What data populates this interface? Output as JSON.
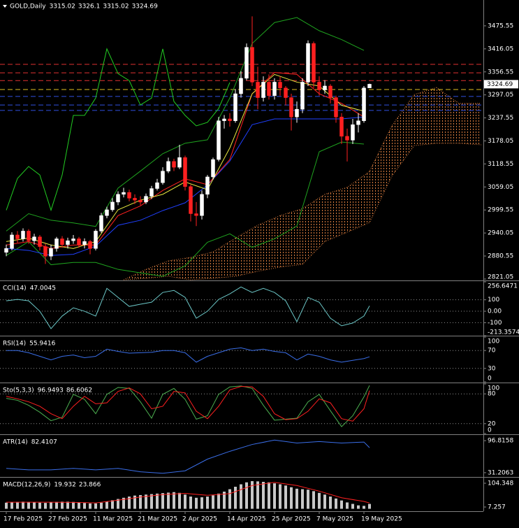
{
  "chart_data": [
    {
      "type": "candlestick",
      "title": "GOLD,Daily",
      "up_color": "#ffffff",
      "down_color": "#ff2020",
      "categories": [
        "17 Feb 2025",
        null,
        null,
        null,
        null,
        null,
        null,
        null,
        "27 Feb 2025",
        null,
        null,
        null,
        null,
        null,
        null,
        null,
        "11 Mar 2025",
        null,
        null,
        null,
        null,
        null,
        null,
        null,
        "21 Mar 2025",
        null,
        null,
        null,
        null,
        null,
        null,
        null,
        "2 Apr 2025",
        null,
        null,
        null,
        null,
        null,
        null,
        null,
        "14 Apr 2025",
        null,
        null,
        null,
        null,
        null,
        null,
        null,
        "25 Apr 2025",
        null,
        null,
        null,
        null,
        null,
        null,
        null,
        "7 May 2025",
        null,
        null,
        null,
        null,
        null,
        null,
        null,
        "19 May 2025",
        null
      ],
      "open": [
        2890,
        2900,
        2935,
        2925,
        2945,
        2920,
        2930,
        2905,
        2880,
        2900,
        2925,
        2910,
        2920,
        2925,
        2910,
        2918,
        2900,
        2945,
        2985,
        3000,
        3020,
        3040,
        3045,
        3030,
        3025,
        3020,
        3035,
        3055,
        3070,
        3100,
        3125,
        3110,
        3135,
        3060,
        2990,
        2985,
        3040,
        3085,
        3130,
        3230,
        3235,
        3230,
        3300,
        3340,
        3420,
        3330,
        3290,
        3330,
        3295,
        3330,
        3315,
        3290,
        3240,
        3260,
        3330,
        3430,
        3330,
        3310,
        3320,
        3290,
        3240,
        3190,
        3180,
        3220,
        3230,
        3315.02
      ],
      "high": [
        2910,
        2942,
        2945,
        2952,
        2950,
        2938,
        2935,
        2912,
        2910,
        2930,
        2932,
        2928,
        2935,
        2930,
        2926,
        2922,
        2950,
        2992,
        3008,
        3030,
        3048,
        3057,
        3052,
        3040,
        3035,
        3042,
        3062,
        3080,
        3110,
        3135,
        3132,
        3168,
        3140,
        3065,
        3020,
        3050,
        3090,
        3135,
        3240,
        3245,
        3250,
        3312,
        3358,
        3430,
        3500,
        3370,
        3345,
        3350,
        3340,
        3345,
        3320,
        3300,
        3280,
        3340,
        3438,
        3435,
        3345,
        3335,
        3325,
        3295,
        3250,
        3210,
        3235,
        3250,
        3320,
        3326.1
      ],
      "low": [
        2880,
        2895,
        2915,
        2918,
        2912,
        2910,
        2895,
        2860,
        2870,
        2892,
        2902,
        2900,
        2912,
        2902,
        2900,
        2885,
        2895,
        2940,
        2978,
        2995,
        3012,
        3032,
        3022,
        3015,
        3012,
        3015,
        3028,
        3050,
        3065,
        3095,
        3100,
        3105,
        3050,
        2970,
        2958,
        2975,
        3030,
        3078,
        3125,
        3210,
        3215,
        3225,
        3290,
        3335,
        3320,
        3260,
        3280,
        3285,
        3285,
        3295,
        3270,
        3205,
        3225,
        3250,
        3320,
        3315,
        3295,
        3300,
        3275,
        3225,
        3170,
        3125,
        3170,
        3200,
        3225,
        3315.02
      ],
      "close": [
        2900,
        2935,
        2925,
        2945,
        2920,
        2930,
        2905,
        2880,
        2900,
        2925,
        2910,
        2920,
        2925,
        2910,
        2918,
        2900,
        2945,
        2985,
        3000,
        3020,
        3040,
        3045,
        3030,
        3025,
        3020,
        3035,
        3055,
        3070,
        3100,
        3125,
        3110,
        3135,
        3060,
        2990,
        2985,
        3040,
        3085,
        3130,
        3230,
        3235,
        3230,
        3300,
        3340,
        3420,
        3330,
        3290,
        3330,
        3295,
        3330,
        3315,
        3290,
        3240,
        3260,
        3330,
        3430,
        3330,
        3310,
        3320,
        3290,
        3240,
        3190,
        3180,
        3220,
        3230,
        3315,
        3324.69
      ],
      "ylim": [
        2817.4,
        3538.7
      ],
      "yticks": [
        3475.55,
        3416.05,
        3356.55,
        3297.05,
        3237.55,
        3178.05,
        3118.55,
        3059.05,
        2999.55,
        2940.05,
        2880.55,
        2821.05
      ],
      "levels": [
        {
          "value": 3376,
          "color": "#e03030"
        },
        {
          "value": 3354,
          "color": "#e03030"
        },
        {
          "value": 3334,
          "color": "#e03030"
        },
        {
          "value": 3311,
          "color": "#e0c020"
        },
        {
          "value": 3293,
          "color": "#3050e0"
        },
        {
          "value": 3271,
          "color": "#3050e0"
        },
        {
          "value": 3257,
          "color": "#3050e0"
        }
      ],
      "cloud": {
        "color": "#e08040",
        "x": [
          21,
          25,
          29,
          33,
          37,
          41,
          45,
          49,
          53,
          57,
          61,
          65,
          69,
          73,
          77,
          81,
          85
        ],
        "upper": [
          2819,
          2846,
          2868,
          2877,
          2891,
          2927,
          2960,
          2985,
          3003,
          3040,
          3058,
          3099,
          3217,
          3298,
          3316,
          3275,
          3275
        ],
        "lower": [
          2819,
          2823,
          2828,
          2819,
          2823,
          2828,
          2841,
          2852,
          2859,
          2918,
          2942,
          2967,
          3087,
          3166,
          3172,
          3172,
          3168
        ]
      },
      "series": [
        {
          "color": "#1fa31f",
          "x": [
            0,
            4,
            8,
            12,
            16,
            20,
            24,
            28,
            32,
            36,
            40,
            44,
            48,
            52,
            56,
            60,
            64
          ],
          "values": [
            2945,
            2990,
            2973,
            2966,
            2957,
            3056,
            3100,
            3145,
            3172,
            3181,
            3289,
            3430,
            3484,
            3497,
            3463,
            3440,
            3412
          ]
        },
        {
          "color": "#1fa31f",
          "x": [
            0,
            4,
            8,
            12,
            16,
            20,
            24,
            28,
            32,
            36,
            40,
            44,
            48,
            52,
            56,
            60,
            64
          ],
          "values": [
            2882,
            2918,
            2858,
            2864,
            2864,
            2846,
            2837,
            2828,
            2855,
            2916,
            2938,
            2903,
            2925,
            2958,
            3150,
            3175,
            3170
          ]
        },
        {
          "color": "#22cc22",
          "x": [
            0,
            2,
            4,
            6,
            8,
            10,
            12,
            14,
            16,
            18,
            20,
            22,
            24,
            26,
            28,
            30,
            32,
            34,
            36,
            38,
            40
          ],
          "values": [
            2999,
            3081,
            3112,
            3090,
            2999,
            3090,
            3244,
            3244,
            3289,
            3416,
            3352,
            3334,
            3271,
            3289,
            3416,
            3280,
            3244,
            3217,
            3226,
            3262,
            3329
          ]
        },
        {
          "color": "#2040ff",
          "x": [
            0,
            4,
            8,
            12,
            16,
            20,
            24,
            28,
            32,
            36,
            40,
            44,
            48,
            52,
            56,
            60,
            64
          ],
          "values": [
            2900,
            2895,
            2882,
            2885,
            2906,
            2960,
            2973,
            2998,
            3018,
            3064,
            3126,
            3220,
            3235,
            3235,
            3235,
            3235,
            3240
          ]
        },
        {
          "color": "#ff2020",
          "x": [
            0,
            4,
            8,
            12,
            16,
            20,
            24,
            28,
            32,
            36,
            40,
            44,
            48,
            52,
            56,
            60,
            64
          ],
          "values": [
            2909,
            2918,
            2900,
            2909,
            2909,
            2985,
            3010,
            3050,
            3080,
            3065,
            3130,
            3300,
            3355,
            3350,
            3300,
            3275,
            3240
          ]
        },
        {
          "color": "#e8e840",
          "x": [
            0,
            4,
            8,
            12,
            16,
            20,
            24,
            28,
            32,
            36,
            40,
            44,
            48,
            52,
            56,
            60,
            64
          ],
          "values": [
            2918,
            2927,
            2909,
            2900,
            2918,
            3000,
            3025,
            3040,
            3072,
            3052,
            3160,
            3300,
            3350,
            3330,
            3320,
            3270,
            3255
          ]
        }
      ]
    },
    {
      "type": "line",
      "title": "CCI(14)",
      "ylim": [
        -213.3574,
        256.6471
      ],
      "yticks": [
        256.6471,
        100,
        {
          "value": 0,
          "label": "0.00"
        },
        -100,
        -213.3574
      ],
      "grid": true,
      "series": [
        {
          "color": "#6cc8c8",
          "x": [
            0,
            2,
            4,
            6,
            8,
            10,
            12,
            14,
            16,
            18,
            20,
            22,
            24,
            26,
            28,
            30,
            32,
            34,
            36,
            38,
            40,
            42,
            44,
            46,
            48,
            50,
            52,
            54,
            56,
            58,
            60,
            62,
            64,
            65
          ],
          "values": [
            91,
            103,
            91,
            0,
            -152,
            -42,
            30,
            0,
            -42,
            200,
            121,
            42,
            61,
            79,
            164,
            182,
            121,
            -61,
            0,
            103,
            152,
            212,
            164,
            200,
            164,
            91,
            -91,
            121,
            79,
            -61,
            -127,
            -103,
            -42,
            47.0045
          ]
        }
      ]
    },
    {
      "type": "line",
      "title": "RSI(14)",
      "ylim": [
        0,
        100
      ],
      "yticks": [
        100,
        70,
        30,
        0
      ],
      "grid": true,
      "series": [
        {
          "color": "#3a6ee8",
          "x": [
            0,
            2,
            4,
            6,
            8,
            10,
            12,
            14,
            16,
            18,
            20,
            22,
            24,
            26,
            28,
            30,
            32,
            34,
            36,
            38,
            40,
            42,
            44,
            46,
            48,
            50,
            52,
            54,
            56,
            58,
            60,
            62,
            64,
            65
          ],
          "values": [
            70,
            70,
            65,
            57,
            49,
            57,
            60,
            54,
            57,
            73,
            68,
            64,
            65,
            66,
            70,
            70,
            65,
            44,
            57,
            65,
            73,
            76,
            70,
            73,
            68,
            65,
            49,
            62,
            57,
            49,
            44,
            48,
            52,
            55.9416
          ]
        }
      ]
    },
    {
      "type": "line",
      "title": "Sto(5,3,3)",
      "ylim": [
        0,
        100
      ],
      "yticks": [
        100,
        80,
        20,
        0
      ],
      "grid": true,
      "series": [
        {
          "color": "#4caf50",
          "x": [
            0,
            2,
            4,
            6,
            8,
            10,
            12,
            14,
            16,
            18,
            20,
            22,
            24,
            26,
            28,
            30,
            32,
            34,
            36,
            38,
            40,
            42,
            44,
            46,
            48,
            50,
            52,
            54,
            56,
            58,
            60,
            62,
            64,
            65
          ],
          "values": [
            71,
            67,
            57,
            43,
            26,
            33,
            79,
            69,
            40,
            79,
            93,
            91,
            64,
            31,
            79,
            91,
            69,
            29,
            36,
            79,
            94,
            96,
            91,
            57,
            27,
            29,
            31,
            64,
            79,
            46,
            14,
            36,
            74,
            96.9493
          ]
        },
        {
          "color": "#ff2020",
          "x": [
            0,
            2,
            4,
            6,
            8,
            10,
            12,
            14,
            16,
            18,
            20,
            22,
            24,
            26,
            28,
            30,
            32,
            34,
            36,
            38,
            40,
            42,
            44,
            46,
            48,
            50,
            52,
            54,
            56,
            58,
            60,
            62,
            64,
            65
          ],
          "values": [
            75,
            70,
            64,
            55,
            40,
            30,
            55,
            75,
            60,
            62,
            85,
            92,
            80,
            50,
            55,
            85,
            82,
            45,
            30,
            55,
            88,
            95,
            94,
            75,
            40,
            28,
            30,
            45,
            70,
            62,
            30,
            25,
            50,
            86.6062
          ]
        }
      ]
    },
    {
      "type": "line",
      "title": "ATR(14)",
      "ylim": [
        23.9,
        107.0
      ],
      "yticks": [
        96.8158,
        31.2063
      ],
      "grid": false,
      "series": [
        {
          "color": "#3a6ee8",
          "x": [
            0,
            4,
            8,
            12,
            16,
            20,
            24,
            28,
            32,
            36,
            40,
            44,
            48,
            52,
            56,
            60,
            64,
            65
          ],
          "values": [
            40,
            37,
            37,
            40,
            37,
            40,
            33,
            30,
            35,
            59,
            75,
            89,
            98,
            92,
            95,
            92,
            94,
            82.4107
          ]
        }
      ]
    },
    {
      "type": "bar",
      "title": "MACD(12,26,9)",
      "color": "#c8c8c8",
      "ylim": [
        -9.88,
        124.3
      ],
      "yticks": [
        104.348,
        7.257
      ],
      "grid": false,
      "values": [
        25,
        27,
        28,
        29,
        28,
        27,
        25,
        24,
        26,
        28,
        29,
        29,
        28,
        26,
        24,
        22,
        22,
        25,
        30,
        35,
        40,
        45,
        50,
        54,
        56,
        58,
        60,
        62,
        64,
        66,
        68,
        65,
        58,
        50,
        45,
        47,
        50,
        55,
        62,
        70,
        80,
        90,
        100,
        108,
        113,
        112,
        110,
        108,
        104,
        100,
        95,
        88,
        82,
        80,
        78,
        72,
        65,
        58,
        50,
        42,
        34,
        26,
        20,
        14,
        12,
        19.932
      ],
      "series": [
        {
          "color": "#ff2020",
          "x": [
            0,
            4,
            8,
            12,
            16,
            20,
            24,
            28,
            32,
            36,
            40,
            44,
            48,
            52,
            56,
            60,
            64,
            65
          ],
          "values": [
            27,
            27,
            27,
            26,
            24,
            35,
            48,
            58,
            63,
            55,
            62,
            95,
            108,
            95,
            72,
            45,
            30,
            23.866
          ]
        }
      ]
    }
  ]
}
